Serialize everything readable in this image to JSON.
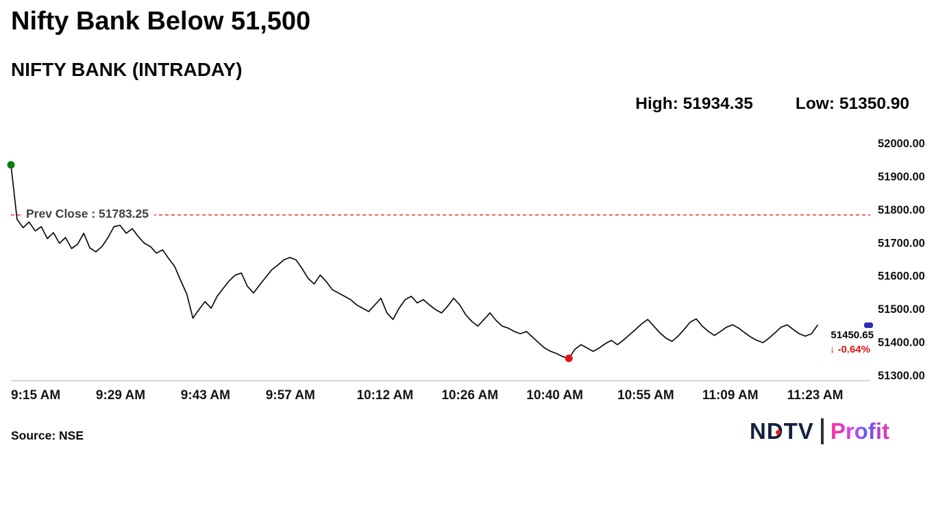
{
  "header": {
    "title": "Nifty Bank Below 51,500",
    "subtitle": "NIFTY BANK (INTRADAY)",
    "high_text": "High: 51934.35",
    "low_text": "Low: 51350.90"
  },
  "footer": {
    "source": "Source: NSE",
    "logo_ndtv": "NDTV",
    "logo_separator": "|",
    "logo_profit": "Profit"
  },
  "chart_data": {
    "type": "line",
    "title": "NIFTY BANK (INTRADAY)",
    "x_ticks": [
      "9:15 AM",
      "9:29 AM",
      "9:43 AM",
      "9:57 AM",
      "10:12 AM",
      "10:26 AM",
      "10:40 AM",
      "10:55 AM",
      "11:09 AM",
      "11:23 AM"
    ],
    "y_ticks": [
      "52000.00",
      "51900.00",
      "51800.00",
      "51700.00",
      "51600.00",
      "51500.00",
      "51400.00",
      "51300.00"
    ],
    "ylim": [
      51300,
      52000
    ],
    "x_range": [
      "9:15 AM",
      "11:28 AM"
    ],
    "prev_close": 51783.25,
    "prev_close_label": "Prev Close : 51783.25",
    "high": 51934.35,
    "low": 51350.9,
    "last": 51450.65,
    "last_label": "51450.65",
    "change_label": "↓ -0.64%",
    "legend": "none",
    "grid": "off",
    "colors": {
      "line": "#0a0a0a",
      "prev_close": "#e02020",
      "open_marker": "#0e7d12",
      "low_marker": "#e01414",
      "last_marker": "#2d2db8",
      "change": "#e01414"
    },
    "points": [
      [
        "9:15",
        51934.35
      ],
      [
        "9:16",
        51770
      ],
      [
        "9:17",
        51745
      ],
      [
        "9:18",
        51762
      ],
      [
        "9:19",
        51735
      ],
      [
        "9:20",
        51748
      ],
      [
        "9:21",
        51712
      ],
      [
        "9:22",
        51730
      ],
      [
        "9:23",
        51698
      ],
      [
        "9:24",
        51715
      ],
      [
        "9:25",
        51682
      ],
      [
        "9:26",
        51695
      ],
      [
        "9:27",
        51728
      ],
      [
        "9:28",
        51684
      ],
      [
        "9:29",
        51672
      ],
      [
        "9:30",
        51688
      ],
      [
        "9:31",
        51715
      ],
      [
        "9:32",
        51748
      ],
      [
        "9:33",
        51752
      ],
      [
        "9:34",
        51728
      ],
      [
        "9:35",
        51742
      ],
      [
        "9:36",
        51718
      ],
      [
        "9:37",
        51698
      ],
      [
        "9:38",
        51688
      ],
      [
        "9:39",
        51668
      ],
      [
        "9:40",
        51678
      ],
      [
        "9:41",
        51652
      ],
      [
        "9:42",
        51628
      ],
      [
        "9:43",
        51585
      ],
      [
        "9:44",
        51545
      ],
      [
        "9:45",
        51472
      ],
      [
        "9:46",
        51498
      ],
      [
        "9:47",
        51522
      ],
      [
        "9:48",
        51502
      ],
      [
        "9:49",
        51538
      ],
      [
        "9:50",
        51562
      ],
      [
        "9:51",
        51585
      ],
      [
        "9:52",
        51602
      ],
      [
        "9:53",
        51608
      ],
      [
        "9:54",
        51568
      ],
      [
        "9:55",
        51548
      ],
      [
        "9:56",
        51572
      ],
      [
        "9:57",
        51595
      ],
      [
        "9:58",
        51618
      ],
      [
        "9:59",
        51632
      ],
      [
        "10:00",
        51648
      ],
      [
        "10:01",
        51655
      ],
      [
        "10:02",
        51648
      ],
      [
        "10:03",
        51622
      ],
      [
        "10:04",
        51592
      ],
      [
        "10:05",
        51575
      ],
      [
        "10:06",
        51602
      ],
      [
        "10:07",
        51582
      ],
      [
        "10:08",
        51558
      ],
      [
        "10:09",
        51548
      ],
      [
        "10:10",
        51538
      ],
      [
        "10:11",
        51528
      ],
      [
        "10:12",
        51512
      ],
      [
        "10:13",
        51502
      ],
      [
        "10:14",
        51492
      ],
      [
        "10:15",
        51512
      ],
      [
        "10:16",
        51532
      ],
      [
        "10:17",
        51488
      ],
      [
        "10:18",
        51468
      ],
      [
        "10:19",
        51502
      ],
      [
        "10:20",
        51528
      ],
      [
        "10:21",
        51538
      ],
      [
        "10:22",
        51518
      ],
      [
        "10:23",
        51528
      ],
      [
        "10:24",
        51512
      ],
      [
        "10:25",
        51498
      ],
      [
        "10:26",
        51488
      ],
      [
        "10:27",
        51508
      ],
      [
        "10:28",
        51532
      ],
      [
        "10:29",
        51512
      ],
      [
        "10:30",
        51482
      ],
      [
        "10:31",
        51462
      ],
      [
        "10:32",
        51448
      ],
      [
        "10:33",
        51468
      ],
      [
        "10:34",
        51488
      ],
      [
        "10:35",
        51465
      ],
      [
        "10:36",
        51448
      ],
      [
        "10:37",
        51442
      ],
      [
        "10:38",
        51432
      ],
      [
        "10:39",
        51425
      ],
      [
        "10:40",
        51432
      ],
      [
        "10:41",
        51415
      ],
      [
        "10:42",
        51398
      ],
      [
        "10:43",
        51382
      ],
      [
        "10:44",
        51372
      ],
      [
        "10:45",
        51365
      ],
      [
        "10:46",
        51356
      ],
      [
        "10:47",
        51350.9
      ],
      [
        "10:48",
        51378
      ],
      [
        "10:49",
        51392
      ],
      [
        "10:50",
        51382
      ],
      [
        "10:51",
        51372
      ],
      [
        "10:52",
        51382
      ],
      [
        "10:53",
        51395
      ],
      [
        "10:54",
        51405
      ],
      [
        "10:55",
        51392
      ],
      [
        "10:56",
        51406
      ],
      [
        "10:57",
        51422
      ],
      [
        "10:58",
        51438
      ],
      [
        "10:59",
        51455
      ],
      [
        "11:00",
        51468
      ],
      [
        "11:01",
        51448
      ],
      [
        "11:02",
        51428
      ],
      [
        "11:03",
        51412
      ],
      [
        "11:04",
        51402
      ],
      [
        "11:05",
        51418
      ],
      [
        "11:06",
        51438
      ],
      [
        "11:07",
        51460
      ],
      [
        "11:08",
        51470
      ],
      [
        "11:09",
        51448
      ],
      [
        "11:10",
        51432
      ],
      [
        "11:11",
        51420
      ],
      [
        "11:12",
        51432
      ],
      [
        "11:13",
        51445
      ],
      [
        "11:14",
        51452
      ],
      [
        "11:15",
        51442
      ],
      [
        "11:16",
        51428
      ],
      [
        "11:17",
        51415
      ],
      [
        "11:18",
        51405
      ],
      [
        "11:19",
        51398
      ],
      [
        "11:20",
        51412
      ],
      [
        "11:21",
        51428
      ],
      [
        "11:22",
        51445
      ],
      [
        "11:23",
        51452
      ],
      [
        "11:24",
        51438
      ],
      [
        "11:25",
        51425
      ],
      [
        "11:26",
        51418
      ],
      [
        "11:27",
        51425
      ],
      [
        "11:28",
        51450.65
      ]
    ]
  }
}
